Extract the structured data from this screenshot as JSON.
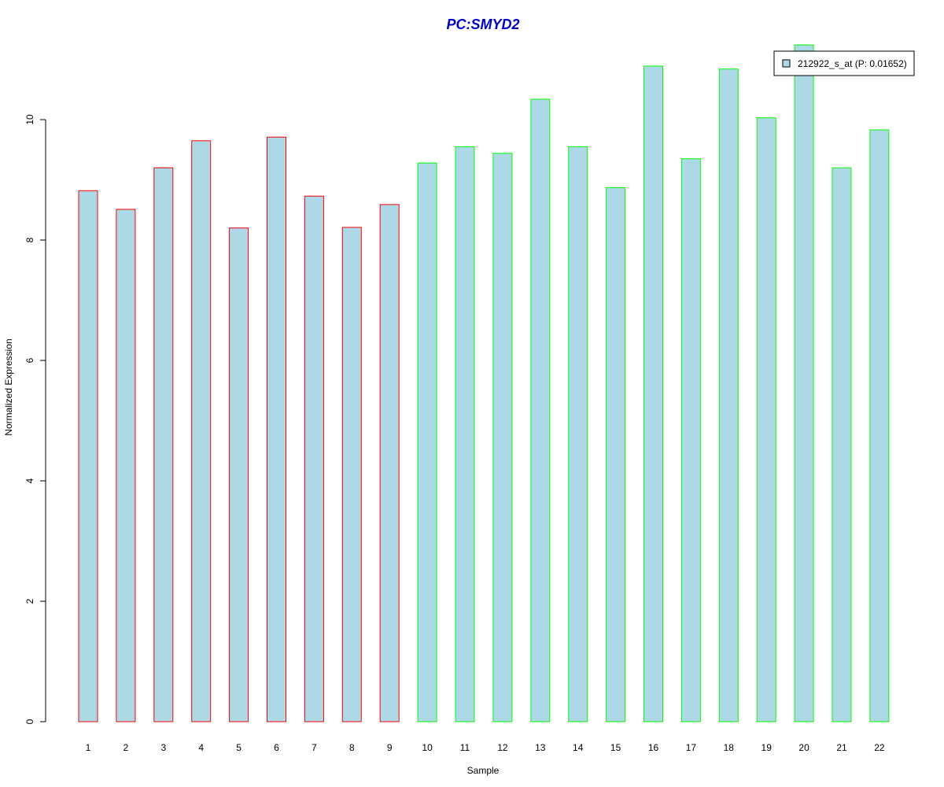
{
  "chart_data": {
    "type": "bar",
    "title": "PC:SMYD2",
    "title_color": "#0000cc",
    "xlabel": "Sample",
    "ylabel": "Normalized Expression",
    "categories": [
      "1",
      "2",
      "3",
      "4",
      "5",
      "6",
      "7",
      "8",
      "9",
      "10",
      "11",
      "12",
      "13",
      "14",
      "15",
      "16",
      "17",
      "18",
      "19",
      "20",
      "21",
      "22"
    ],
    "values": [
      8.82,
      8.51,
      9.2,
      9.65,
      8.2,
      9.71,
      8.73,
      8.21,
      8.59,
      9.28,
      9.55,
      9.44,
      10.34,
      9.55,
      8.87,
      10.89,
      9.35,
      10.84,
      10.03,
      11.24,
      9.2,
      9.83
    ],
    "groups": [
      "red",
      "red",
      "red",
      "red",
      "red",
      "red",
      "red",
      "red",
      "red",
      "green",
      "green",
      "green",
      "green",
      "green",
      "green",
      "green",
      "green",
      "green",
      "green",
      "green",
      "green",
      "green"
    ],
    "group_colors": {
      "red": "#ff0000",
      "green": "#00ff00"
    },
    "bar_fill": "#add8e6",
    "yticks": [
      0,
      2,
      4,
      6,
      8,
      10
    ],
    "ylim": [
      0,
      11.24
    ],
    "legend": {
      "label": "212922_s_at (P: 0.01652)",
      "position": "top-right",
      "swatch_color": "#add8e6"
    },
    "grid": false
  }
}
